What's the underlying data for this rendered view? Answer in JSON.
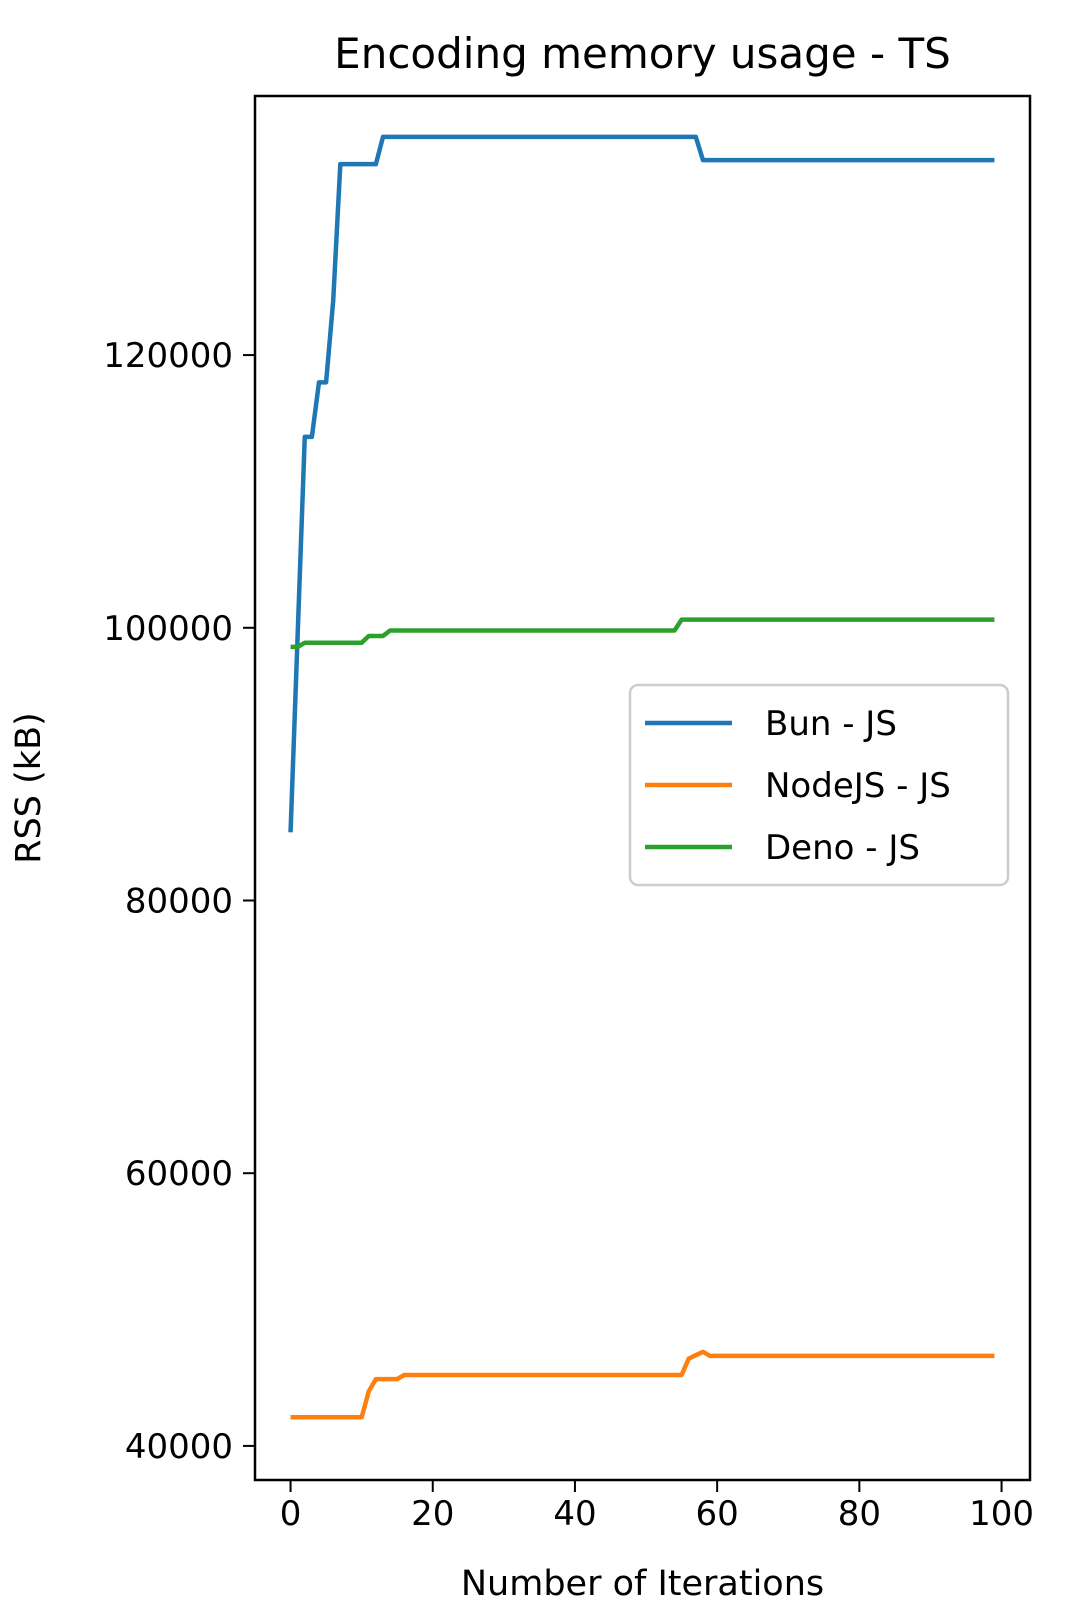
{
  "chart_data": {
    "type": "line",
    "title": "Encoding memory usage - TS",
    "xlabel": "Number of Iterations",
    "ylabel": "RSS (kB)",
    "xlim": [
      -5,
      104
    ],
    "ylim": [
      37500,
      139000
    ],
    "xticks": [
      0,
      20,
      40,
      60,
      80,
      100
    ],
    "yticks": [
      40000,
      60000,
      80000,
      100000,
      120000
    ],
    "grid": false,
    "legend_position": "center-right",
    "series": [
      {
        "name": "Bun - JS",
        "color": "#1f77b4",
        "points": [
          [
            0,
            85000
          ],
          [
            2,
            114000
          ],
          [
            3,
            114000
          ],
          [
            4,
            118000
          ],
          [
            5,
            118000
          ],
          [
            6,
            124000
          ],
          [
            7,
            134000
          ],
          [
            12,
            134000
          ],
          [
            13,
            136000
          ],
          [
            57,
            136000
          ],
          [
            58,
            134300
          ],
          [
            99,
            134300
          ]
        ]
      },
      {
        "name": "NodeJS - JS",
        "color": "#ff7f0e",
        "points": [
          [
            0,
            42100
          ],
          [
            10,
            42100
          ],
          [
            11,
            44000
          ],
          [
            12,
            44900
          ],
          [
            15,
            44900
          ],
          [
            16,
            45200
          ],
          [
            55,
            45200
          ],
          [
            56,
            46400
          ],
          [
            58,
            46900
          ],
          [
            59,
            46600
          ],
          [
            99,
            46600
          ]
        ]
      },
      {
        "name": "Deno - JS",
        "color": "#2ca02c",
        "points": [
          [
            0,
            98600
          ],
          [
            1,
            98600
          ],
          [
            2,
            98900
          ],
          [
            10,
            98900
          ],
          [
            11,
            99400
          ],
          [
            13,
            99400
          ],
          [
            14,
            99800
          ],
          [
            54,
            99800
          ],
          [
            55,
            100600
          ],
          [
            99,
            100600
          ]
        ]
      }
    ]
  }
}
